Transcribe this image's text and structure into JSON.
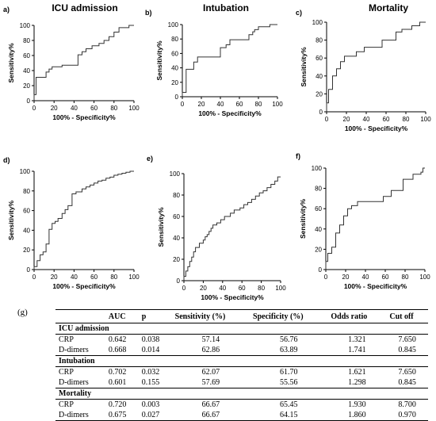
{
  "column_titles": [
    "ICU admission",
    "Intubation",
    "Mortality"
  ],
  "chart_data": [
    {
      "type": "line",
      "panel": "a)",
      "title": "ICU admission",
      "xlabel": "100% - Specificity%",
      "ylabel": "Sensitivity%",
      "xlim": [
        0,
        100
      ],
      "ylim": [
        0,
        100
      ],
      "xticks": [
        "0",
        "20",
        "40",
        "60",
        "80",
        "100"
      ],
      "yticks": [
        "0",
        "20",
        "40",
        "60",
        "80",
        "100"
      ],
      "x": [
        0,
        0,
        2,
        2,
        12,
        12,
        15,
        15,
        18,
        18,
        28,
        28,
        44,
        44,
        48,
        48,
        52,
        52,
        58,
        58,
        65,
        65,
        70,
        70,
        75,
        75,
        80,
        80,
        85,
        85,
        95,
        95,
        100
      ],
      "y": [
        0,
        8,
        8,
        31,
        31,
        38,
        38,
        42,
        42,
        45,
        45,
        47,
        47,
        61,
        61,
        65,
        65,
        69,
        69,
        73,
        73,
        76,
        76,
        80,
        80,
        85,
        85,
        91,
        91,
        97,
        97,
        100,
        100
      ]
    },
    {
      "type": "line",
      "panel": "b)",
      "title": "Intubation",
      "xlabel": "100% - Specificity%",
      "ylabel": "Sensitivity%",
      "xlim": [
        0,
        100
      ],
      "ylim": [
        0,
        100
      ],
      "xticks": [
        "0",
        "20",
        "40",
        "60",
        "80",
        "100"
      ],
      "yticks": [
        "0",
        "20",
        "40",
        "60",
        "80",
        "100"
      ],
      "x": [
        0,
        0,
        4,
        4,
        12,
        12,
        16,
        16,
        40,
        40,
        46,
        46,
        50,
        50,
        70,
        70,
        74,
        74,
        76,
        76,
        80,
        80,
        92,
        92,
        100
      ],
      "y": [
        0,
        6,
        6,
        38,
        38,
        48,
        48,
        55,
        55,
        68,
        68,
        72,
        72,
        79,
        79,
        86,
        86,
        90,
        90,
        93,
        93,
        97,
        97,
        100,
        100
      ]
    },
    {
      "type": "line",
      "panel": "c)",
      "title": "Mortality",
      "xlabel": "100% - Specificity%",
      "ylabel": "Sensitivity%",
      "xlim": [
        0,
        100
      ],
      "ylim": [
        0,
        100
      ],
      "xticks": [
        "0",
        "20",
        "40",
        "60",
        "80",
        "100"
      ],
      "yticks": [
        "0",
        "20",
        "40",
        "60",
        "80",
        "100"
      ],
      "x": [
        0,
        0,
        2,
        2,
        6,
        6,
        10,
        10,
        14,
        14,
        18,
        18,
        30,
        30,
        38,
        38,
        56,
        56,
        70,
        70,
        76,
        76,
        86,
        86,
        94,
        94,
        100
      ],
      "y": [
        0,
        10,
        10,
        25,
        25,
        40,
        40,
        48,
        48,
        56,
        56,
        62,
        62,
        67,
        67,
        72,
        72,
        80,
        80,
        89,
        89,
        92,
        92,
        96,
        96,
        100,
        100
      ]
    },
    {
      "type": "line",
      "panel": "d)",
      "xlabel": "100% - Specificity%",
      "ylabel": "Sensitivity%",
      "xlim": [
        0,
        100
      ],
      "ylim": [
        0,
        100
      ],
      "xticks": [
        "0",
        "20",
        "40",
        "60",
        "80",
        "100"
      ],
      "yticks": [
        "0",
        "20",
        "40",
        "60",
        "80",
        "100"
      ],
      "x": [
        0,
        0,
        3,
        3,
        6,
        6,
        9,
        9,
        12,
        12,
        15,
        15,
        18,
        18,
        21,
        21,
        24,
        24,
        28,
        28,
        31,
        31,
        34,
        34,
        38,
        38,
        42,
        42,
        48,
        48,
        52,
        52,
        56,
        56,
        60,
        60,
        64,
        64,
        68,
        68,
        72,
        72,
        76,
        76,
        80,
        80,
        84,
        84,
        88,
        88,
        92,
        92,
        96,
        96,
        100
      ],
      "y": [
        0,
        3,
        3,
        9,
        9,
        15,
        15,
        18,
        18,
        26,
        26,
        41,
        41,
        47,
        47,
        49,
        49,
        52,
        52,
        57,
        57,
        61,
        61,
        65,
        65,
        77,
        77,
        79,
        79,
        82,
        82,
        84,
        84,
        86,
        86,
        88,
        88,
        90,
        90,
        91,
        91,
        93,
        93,
        94,
        94,
        96,
        96,
        97,
        97,
        98,
        98,
        99,
        99,
        100,
        100
      ]
    },
    {
      "type": "line",
      "panel": "e)",
      "xlabel": "100% - Specificity%",
      "ylabel": "Sensitivity%",
      "xlim": [
        0,
        100
      ],
      "ylim": [
        0,
        100
      ],
      "xticks": [
        "0",
        "20",
        "40",
        "60",
        "80",
        "100"
      ],
      "yticks": [
        "0",
        "20",
        "40",
        "60",
        "80",
        "100"
      ],
      "x": [
        0,
        0,
        2,
        2,
        4,
        4,
        6,
        6,
        8,
        8,
        10,
        10,
        12,
        12,
        16,
        16,
        20,
        20,
        22,
        22,
        24,
        24,
        26,
        26,
        28,
        28,
        30,
        30,
        34,
        34,
        38,
        38,
        42,
        42,
        48,
        48,
        52,
        52,
        58,
        58,
        62,
        62,
        66,
        66,
        70,
        70,
        74,
        74,
        78,
        78,
        82,
        82,
        86,
        86,
        90,
        90,
        94,
        94,
        97,
        97,
        100
      ],
      "y": [
        0,
        4,
        4,
        9,
        9,
        13,
        13,
        18,
        18,
        22,
        22,
        27,
        27,
        31,
        31,
        35,
        35,
        38,
        38,
        41,
        41,
        43,
        43,
        46,
        46,
        49,
        49,
        52,
        52,
        54,
        54,
        57,
        57,
        60,
        60,
        63,
        63,
        66,
        66,
        68,
        68,
        71,
        71,
        73,
        73,
        76,
        76,
        79,
        79,
        82,
        82,
        84,
        84,
        87,
        87,
        90,
        90,
        93,
        93,
        97,
        97
      ]
    },
    {
      "type": "line",
      "panel": "f)",
      "xlabel": "100% - Specificity%",
      "ylabel": "Sensitivity%",
      "xlim": [
        0,
        100
      ],
      "ylim": [
        0,
        100
      ],
      "xticks": [
        "0",
        "20",
        "40",
        "60",
        "80",
        "100"
      ],
      "yticks": [
        "0",
        "20",
        "40",
        "60",
        "80",
        "100"
      ],
      "x": [
        0,
        0,
        2,
        2,
        6,
        6,
        10,
        10,
        14,
        14,
        18,
        18,
        22,
        22,
        26,
        26,
        32,
        32,
        58,
        58,
        66,
        66,
        78,
        78,
        88,
        88,
        96,
        96,
        98,
        98,
        100
      ],
      "y": [
        0,
        8,
        8,
        16,
        16,
        22,
        22,
        36,
        36,
        44,
        44,
        53,
        53,
        60,
        60,
        63,
        63,
        67,
        67,
        72,
        72,
        78,
        78,
        89,
        89,
        94,
        94,
        96,
        96,
        100,
        100
      ]
    }
  ],
  "table": {
    "label": "(g)",
    "headers": [
      "",
      "AUC",
      "p",
      "Sensitivity (%)",
      "Specificity (%)",
      "Odds ratio",
      "Cut off"
    ],
    "groups": [
      {
        "name": "ICU admission",
        "rows": [
          [
            "CRP",
            "0.642",
            "0.038",
            "57.14",
            "56.76",
            "1.321",
            "7.650"
          ],
          [
            "D-dimers",
            "0.668",
            "0.014",
            "62.86",
            "63.89",
            "1.741",
            "0.845"
          ]
        ]
      },
      {
        "name": "Intubation",
        "rows": [
          [
            "CRP",
            "0.702",
            "0.032",
            "62.07",
            "61.70",
            "1.621",
            "7.650"
          ],
          [
            "D-dimers",
            "0.601",
            "0.155",
            "57.69",
            "55.56",
            "1.298",
            "0.845"
          ]
        ]
      },
      {
        "name": "Mortality",
        "rows": [
          [
            "CRP",
            "0.720",
            "0.003",
            "66.67",
            "65.45",
            "1.930",
            "8.700"
          ],
          [
            "D-dimers",
            "0.675",
            "0.027",
            "66.67",
            "64.15",
            "1.860",
            "0.970"
          ]
        ]
      }
    ]
  }
}
